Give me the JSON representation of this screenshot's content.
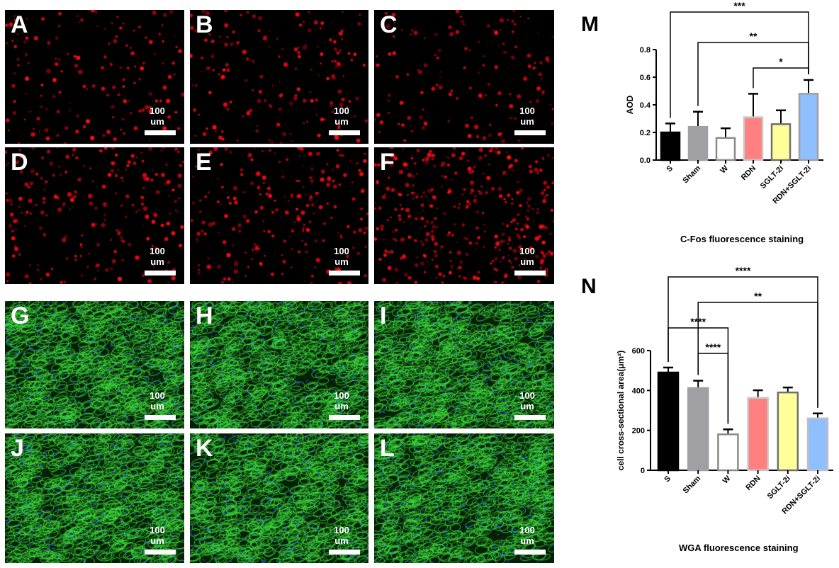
{
  "panels": [
    {
      "label": "A",
      "scale": "100 um",
      "stain": "red",
      "density": 0.6
    },
    {
      "label": "B",
      "scale": "100 um",
      "stain": "red",
      "density": 0.65
    },
    {
      "label": "C",
      "scale": "100 um",
      "stain": "red",
      "density": 0.5
    },
    {
      "label": "D",
      "scale": "100 um",
      "stain": "red",
      "density": 0.8
    },
    {
      "label": "E",
      "scale": "100 um",
      "stain": "red",
      "density": 0.8
    },
    {
      "label": "F",
      "scale": "100 um",
      "stain": "red",
      "density": 1.4
    },
    {
      "label": "G",
      "scale": "100 um",
      "stain": "green"
    },
    {
      "label": "H",
      "scale": "100 um",
      "stain": "green"
    },
    {
      "label": "I",
      "scale": "100 um",
      "stain": "green"
    },
    {
      "label": "J",
      "scale": "100 um",
      "stain": "green"
    },
    {
      "label": "K",
      "scale": "100 um",
      "stain": "green"
    },
    {
      "label": "L",
      "scale": "100 um",
      "stain": "green"
    }
  ],
  "colors": {
    "red_stain": "#ff1a1a",
    "green_stain": "#22cc22",
    "blue_nuclei": "#2244ff"
  },
  "chart_data": [
    {
      "panel_label": "M",
      "type": "bar",
      "title": "C-Fos fluorescence staining",
      "ylabel": "AOD",
      "categories": [
        "S",
        "Sham",
        "W",
        "RDN",
        "SGLT-2i",
        "RDN+SGLT-2i"
      ],
      "values": [
        0.2,
        0.24,
        0.16,
        0.31,
        0.26,
        0.48
      ],
      "errors": [
        0.065,
        0.11,
        0.07,
        0.17,
        0.1,
        0.1
      ],
      "fills": [
        "#000000",
        "#a0a0a4",
        "#ffffff",
        "#ff8080",
        "#ffff99",
        "#8fbfff"
      ],
      "strokes": [
        "#000000",
        "#a0a0a4",
        "#8a8a8a",
        "#c8c8c8",
        "#707070",
        "#a0a0a0"
      ],
      "ylim": [
        0,
        0.8
      ],
      "yticks": [
        "0.0",
        "0.2",
        "0.4",
        "0.6",
        "0.8"
      ],
      "comparisons": [
        {
          "from": "S",
          "to": "RDN+SGLT-2i",
          "label": "***"
        },
        {
          "from": "Sham",
          "to": "RDN+SGLT-2i",
          "label": "**"
        },
        {
          "from": "RDN",
          "to": "RDN+SGLT-2i",
          "label": "*"
        }
      ]
    },
    {
      "panel_label": "N",
      "type": "bar",
      "title": "WGA fluorescence staining",
      "ylabel": "cell cross-sectional area(μm²)",
      "categories": [
        "S",
        "Sham",
        "W",
        "RDN",
        "SGLT-2i",
        "RDN+SGLT-2i"
      ],
      "values": [
        490,
        412,
        180,
        363,
        390,
        260
      ],
      "errors": [
        25,
        37,
        25,
        38,
        25,
        25
      ],
      "fills": [
        "#000000",
        "#a0a0a4",
        "#ffffff",
        "#ff8080",
        "#ffff99",
        "#8fbfff"
      ],
      "strokes": [
        "#000000",
        "#a0a0a4",
        "#8a8a8a",
        "#c8c8c8",
        "#707070",
        "#c0c0c0"
      ],
      "ylim": [
        0,
        600
      ],
      "yticks": [
        "0",
        "200",
        "400",
        "600"
      ],
      "comparisons": [
        {
          "from": "S",
          "to": "RDN+SGLT-2i",
          "label": "****"
        },
        {
          "from": "Sham",
          "to": "RDN+SGLT-2i",
          "label": "**"
        },
        {
          "from": "S",
          "to": "W",
          "label": "****"
        },
        {
          "from": "Sham",
          "to": "W",
          "label": "****"
        }
      ]
    }
  ]
}
